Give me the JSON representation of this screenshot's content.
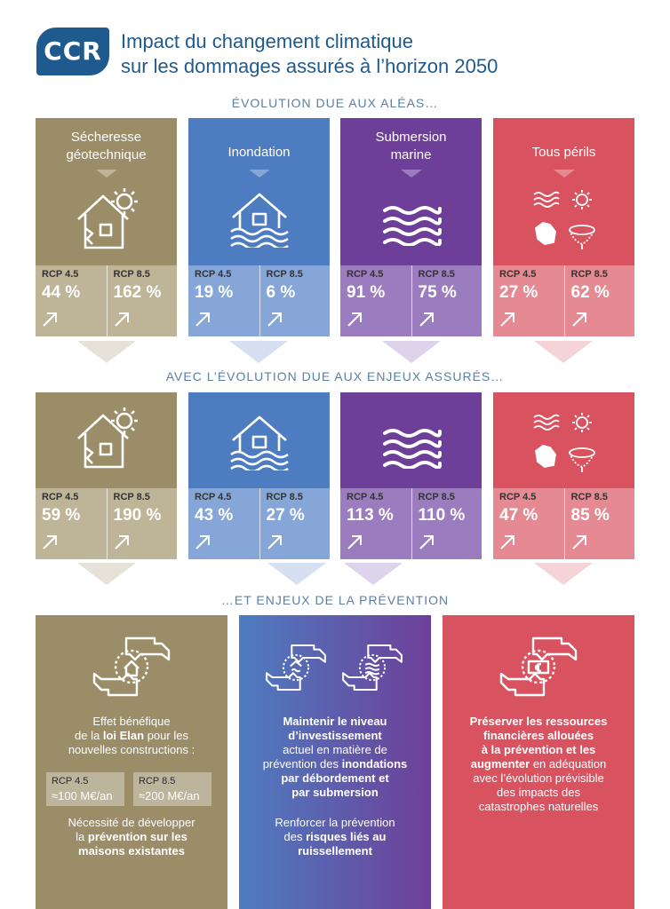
{
  "header": {
    "logo_text": "CCR",
    "title_line1": "Impact du changement climatique",
    "title_line2": "sur les dommages assurés à l’horizon 2050"
  },
  "sections": {
    "s1": "ÉVOLUTION DUE AUX ALÉAS…",
    "s2": "AVEC L’ÉVOLUTION DUE AUX ENJEUX ASSURÉS…",
    "s3": "…ET ENJEUX DE LA PRÉVENTION"
  },
  "hazards": [
    {
      "title_line1": "Sécheresse",
      "title_line2": "géotechnique",
      "icon": "house-sun-crack-icon"
    },
    {
      "title_line1": "Inondation",
      "title_line2": "",
      "icon": "house-flood-icon"
    },
    {
      "title_line1": "Submersion",
      "title_line2": "marine",
      "icon": "waves-icon"
    },
    {
      "title_line1": "Tous périls",
      "title_line2": "",
      "icon": "all-perils-icon"
    }
  ],
  "row1": [
    {
      "rcp45_label": "RCP 4.5",
      "rcp45_value": "44 %",
      "rcp85_label": "RCP 8.5",
      "rcp85_value": "162 %"
    },
    {
      "rcp45_label": "RCP 4.5",
      "rcp45_value": "19 %",
      "rcp85_label": "RCP 8.5",
      "rcp85_value": "6 %"
    },
    {
      "rcp45_label": "RCP 4.5",
      "rcp45_value": "91 %",
      "rcp85_label": "RCP 8.5",
      "rcp85_value": "75 %"
    },
    {
      "rcp45_label": "RCP 4.5",
      "rcp45_value": "27 %",
      "rcp85_label": "RCP 8.5",
      "rcp85_value": "62 %"
    }
  ],
  "row2": [
    {
      "rcp45_label": "RCP 4.5",
      "rcp45_value": "59 %",
      "rcp85_label": "RCP 8.5",
      "rcp85_value": "190 %"
    },
    {
      "rcp45_label": "RCP 4.5",
      "rcp45_value": "43 %",
      "rcp85_label": "RCP 8.5",
      "rcp85_value": "27 %"
    },
    {
      "rcp45_label": "RCP 4.5",
      "rcp45_value": "113 %",
      "rcp85_label": "RCP 8.5",
      "rcp85_value": "110 %"
    },
    {
      "rcp45_label": "RCP 4.5",
      "rcp45_value": "47 %",
      "rcp85_label": "RCP 8.5",
      "rcp85_value": "85 %"
    }
  ],
  "prevention": {
    "elan": {
      "l1": "Effet bénéfique",
      "l2a": "de la ",
      "l2b": "loi Elan",
      "l2c": " pour les",
      "l3": "nouvelles constructions :",
      "rcp45_label": "RCP 4.5",
      "rcp45_value": "≈100 M€/an",
      "rcp85_label": "RCP 8.5",
      "rcp85_value": "≈200 M€/an",
      "n1": "Nécessité de développer",
      "n2a": "la ",
      "n2b": "prévention sur les",
      "n3": "maisons existantes"
    },
    "flood": {
      "l1": "Maintenir le niveau",
      "l2": "d’investissement",
      "l3": "actuel en matière de",
      "l4a": "prévention des ",
      "l4b": "inondations",
      "l5": "par débordement et",
      "l6": "par submersion",
      "m1": "Renforcer la prévention",
      "m2a": "des ",
      "m2b": "risques liés au",
      "m3": "ruissellement"
    },
    "finance": {
      "l1": "Préserver les ressources",
      "l2": "financières allouées",
      "l3": "à la prévention et les",
      "l4a": "augmenter",
      "l4b": " en adéquation",
      "l5": "avec l’évolution prévisible",
      "l6": "des impacts des",
      "l7": "catastrophes naturelles"
    }
  },
  "colors": {
    "brand": "#1f5a8e",
    "secheresse": "#9a8d67",
    "secheresse_light": "#beb497",
    "inondation": "#4e7cc1",
    "inondation_light": "#86a6d8",
    "submersion": "#6e3f98",
    "submersion_light": "#9b7cbe",
    "tous_perils": "#d9525f",
    "tous_perils_light": "#e58a93"
  }
}
